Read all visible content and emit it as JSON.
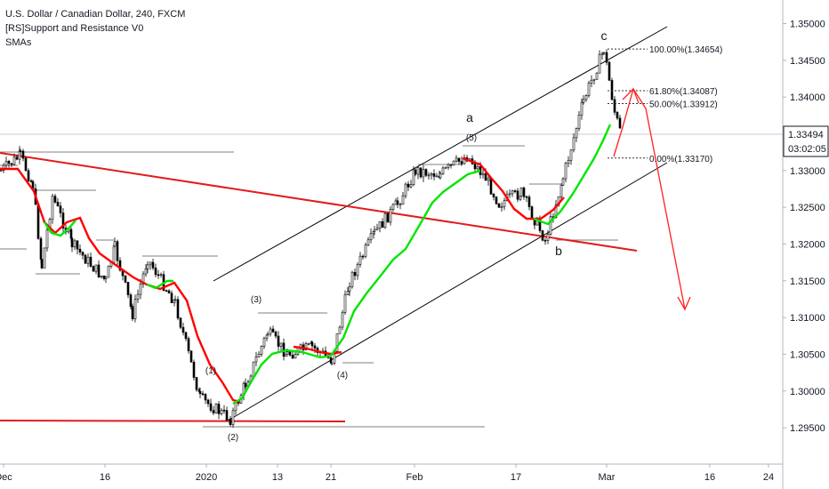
{
  "legend": {
    "title": "U.S. Dollar / Canadian Dollar, 240, FXCM",
    "indicator1": "[RS]Support and Resistance V0",
    "indicator2": "SMAs"
  },
  "colors": {
    "candle": "#000000",
    "sma_fast": "#00e600",
    "sma_slow": "#ff0000",
    "trendline_red": "#e31b1b",
    "channel": "#000000",
    "arrow": "#ff2020",
    "current_price_bg": "#ffffff"
  },
  "chart_data": {
    "type": "line",
    "title": "U.S. Dollar / Canadian Dollar, 240, FXCM",
    "y_ticks": [
      "1.35000",
      "1.34500",
      "1.34000",
      "1.33500",
      "1.33000",
      "1.32500",
      "1.32000",
      "1.31500",
      "1.31000",
      "1.30500",
      "1.30000",
      "1.29500"
    ],
    "x_ticks": [
      "Dec",
      "16",
      "2020",
      "13",
      "21",
      "Feb",
      "17",
      "Mar",
      "16",
      "24"
    ],
    "current_price": "1.33494",
    "countdown": "03:02:05",
    "ylim": [
      1.2915,
      1.352
    ],
    "price_path": [
      {
        "x": "start",
        "y": 1.33
      },
      {
        "x": "Dec",
        "y": 1.332
      },
      {
        "x": "Dec+",
        "y": 1.328
      },
      {
        "x": "Dec++",
        "y": 1.317
      },
      {
        "x": "Dec+3",
        "y": 1.3265
      },
      {
        "x": "Dec+4",
        "y": 1.32
      },
      {
        "x": "16",
        "y": 1.315
      },
      {
        "x": "16+",
        "y": 1.3195
      },
      {
        "x": "16++",
        "y": 1.3105
      },
      {
        "x": "16+3",
        "y": 1.318
      },
      {
        "x": "16+4",
        "y": 1.312
      },
      {
        "x": "pre2020",
        "y": 1.299
      },
      {
        "x": "2020",
        "y": 1.2962
      },
      {
        "x": "2020+",
        "y": 1.301
      },
      {
        "x": "13",
        "y": 1.308
      },
      {
        "x": "13+",
        "y": 1.305
      },
      {
        "x": "21-",
        "y": 1.306
      },
      {
        "x": "21",
        "y": 1.3042
      },
      {
        "x": "21+",
        "y": 1.315
      },
      {
        "x": "21++",
        "y": 1.3215
      },
      {
        "x": "Feb-",
        "y": 1.3255
      },
      {
        "x": "Feb",
        "y": 1.33
      },
      {
        "x": "Feb+",
        "y": 1.3295
      },
      {
        "x": "Feb++",
        "y": 1.332
      },
      {
        "x": "17-",
        "y": 1.329
      },
      {
        "x": "17",
        "y": 1.3255
      },
      {
        "x": "17+",
        "y": 1.327
      },
      {
        "x": "17++",
        "y": 1.3205
      },
      {
        "x": "Mar-",
        "y": 1.329
      },
      {
        "x": "Mar-+",
        "y": 1.3395
      },
      {
        "x": "Mar",
        "y": 1.3465
      },
      {
        "x": "Mar+",
        "y": 1.338
      },
      {
        "x": "Mar++",
        "y": 1.3345
      }
    ],
    "annotations": {
      "wave_labels": [
        "a",
        "b",
        "c",
        "(2)",
        "(3)",
        "(4)",
        "(5)",
        "(1)"
      ],
      "fib_levels": [
        {
          "label": "100.00%(1.34654)",
          "price": 1.34654
        },
        {
          "label": "61.80%(1.34087)",
          "price": 1.34087
        },
        {
          "label": "50.00%(1.33912)",
          "price": 1.33912
        },
        {
          "label": "0.00%(1.33170)",
          "price": 1.3317
        }
      ]
    },
    "grid": false
  }
}
